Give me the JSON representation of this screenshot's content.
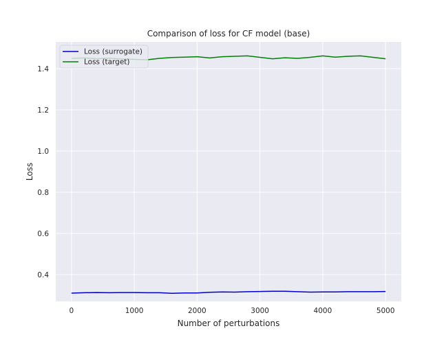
{
  "chart_data": {
    "type": "line",
    "title": "Comparison of loss for CF model (base)",
    "xlabel": "Number of perturbations",
    "ylabel": "Loss",
    "xlim": [
      -250,
      5250
    ],
    "ylim": [
      0.27,
      1.53
    ],
    "xticks": [
      0,
      1000,
      2000,
      3000,
      4000,
      5000
    ],
    "yticks": [
      0.4,
      0.6,
      0.8,
      1.0,
      1.2,
      1.4
    ],
    "xtick_labels": [
      "0",
      "1000",
      "2000",
      "3000",
      "4000",
      "5000"
    ],
    "ytick_labels": [
      "0.4",
      "0.6",
      "0.8",
      "1.0",
      "1.2",
      "1.4"
    ],
    "grid": true,
    "legend_position": "top-left",
    "series": [
      {
        "name": "Loss (surrogate)",
        "color": "#0000cc",
        "x": [
          0,
          200,
          400,
          600,
          800,
          1000,
          1200,
          1400,
          1600,
          1800,
          2000,
          2200,
          2400,
          2600,
          2800,
          3000,
          3200,
          3400,
          3600,
          3800,
          4000,
          4200,
          4400,
          4600,
          4800,
          5000
        ],
        "y": [
          0.31,
          0.312,
          0.313,
          0.312,
          0.313,
          0.313,
          0.312,
          0.312,
          0.309,
          0.311,
          0.311,
          0.314,
          0.316,
          0.315,
          0.317,
          0.318,
          0.319,
          0.319,
          0.317,
          0.315,
          0.316,
          0.316,
          0.317,
          0.317,
          0.317,
          0.318
        ]
      },
      {
        "name": "Loss (target)",
        "color": "#007f00",
        "x": [
          0,
          200,
          400,
          600,
          800,
          1000,
          1200,
          1400,
          1600,
          1800,
          2000,
          2200,
          2400,
          2600,
          2800,
          3000,
          3200,
          3400,
          3600,
          3800,
          4000,
          4200,
          4400,
          4600,
          4800,
          5000
        ],
        "y": [
          1.45,
          1.452,
          1.448,
          1.451,
          1.447,
          1.445,
          1.443,
          1.45,
          1.454,
          1.456,
          1.458,
          1.452,
          1.458,
          1.46,
          1.462,
          1.455,
          1.448,
          1.453,
          1.45,
          1.455,
          1.462,
          1.456,
          1.46,
          1.462,
          1.455,
          1.448
        ]
      }
    ]
  }
}
